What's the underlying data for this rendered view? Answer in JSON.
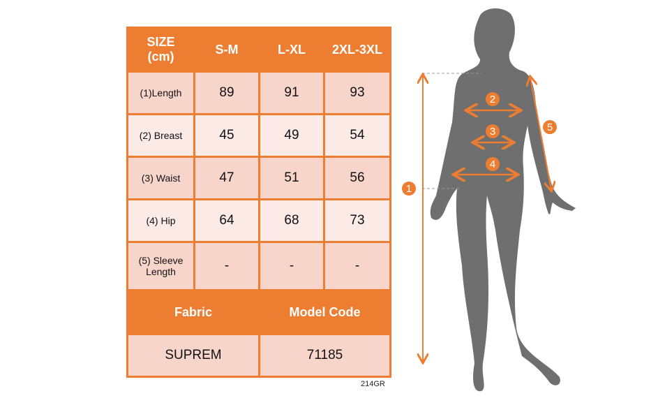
{
  "table": {
    "header": [
      "SIZE\n(cm)",
      "S-M",
      "L-XL",
      "2XL-3XL"
    ],
    "rows": [
      {
        "label": "(1)Length",
        "values": [
          "89",
          "91",
          "93"
        ]
      },
      {
        "label": "(2) Breast",
        "values": [
          "45",
          "49",
          "54"
        ]
      },
      {
        "label": "(3) Waist",
        "values": [
          "47",
          "51",
          "56"
        ]
      },
      {
        "label": "(4) Hip",
        "values": [
          "64",
          "68",
          "73"
        ]
      },
      {
        "label": "(5) Sleeve Length",
        "values": [
          "-",
          "-",
          "-"
        ]
      }
    ],
    "fabric_label": "Fabric",
    "model_code_label": "Model Code",
    "fabric_value": "SUPREM",
    "model_code_value": "71185"
  },
  "footer_code": "214GR",
  "figure": {
    "markers": [
      "1",
      "2",
      "3",
      "4",
      "5"
    ]
  },
  "colors": {
    "accent": "#ED7D31",
    "row_dark": "#F8D5CB",
    "row_light": "#FBEAE5",
    "silhouette": "#6F6F6F"
  }
}
